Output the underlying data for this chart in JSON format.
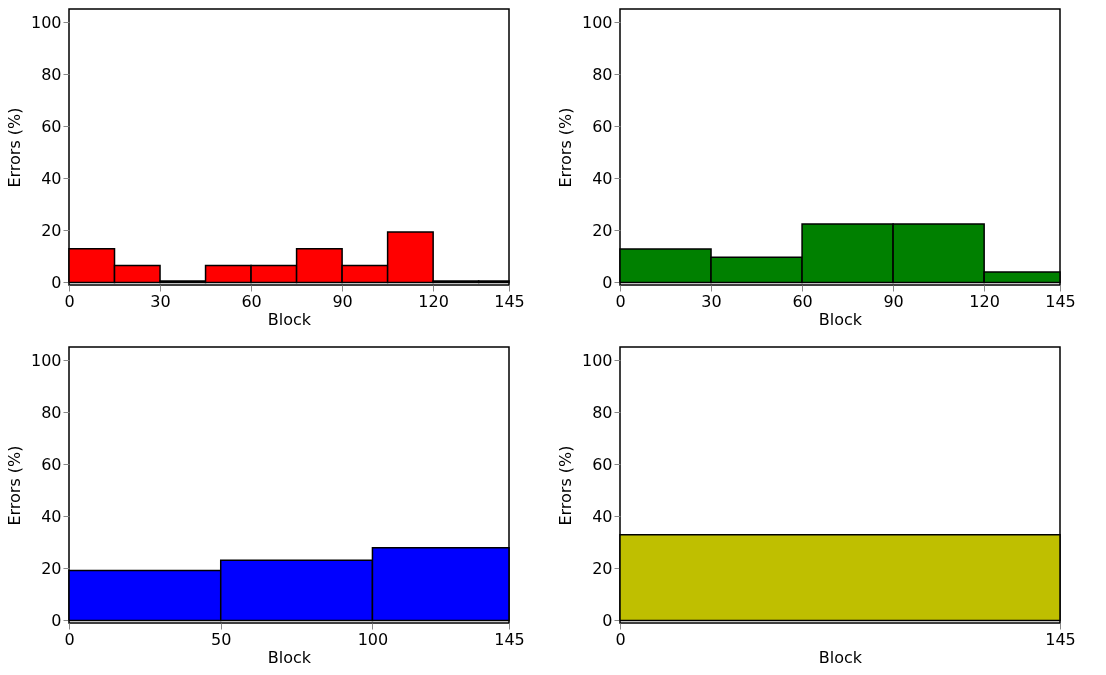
{
  "chart_data": [
    {
      "type": "histogram",
      "bins": [
        0,
        15,
        30,
        45,
        60,
        75,
        90,
        105,
        120,
        135,
        145
      ],
      "values": [
        12.9,
        6.5,
        0.5,
        6.5,
        6.5,
        12.9,
        6.5,
        19.4,
        0.5,
        0.5
      ],
      "color": "#ff0000",
      "xlabel": "Block",
      "ylabel": "Errors (%)",
      "xlim": [
        0,
        145
      ],
      "xticks": [
        0,
        30,
        60,
        90,
        120,
        145
      ],
      "ylim": [
        -1,
        105
      ],
      "yticks": [
        0,
        20,
        40,
        60,
        80,
        100
      ],
      "grid": false
    },
    {
      "type": "histogram",
      "bins": [
        0,
        30,
        60,
        90,
        120,
        145
      ],
      "values": [
        12.8,
        9.7,
        22.4,
        22.4,
        4.0
      ],
      "color": "#008000",
      "xlabel": "Block",
      "ylabel": "Errors (%)",
      "xlim": [
        0,
        145
      ],
      "xticks": [
        0,
        30,
        60,
        90,
        120,
        145
      ],
      "ylim": [
        -1,
        105
      ],
      "yticks": [
        0,
        20,
        40,
        60,
        80,
        100
      ],
      "grid": false
    },
    {
      "type": "histogram",
      "bins": [
        0,
        50,
        100,
        145
      ],
      "values": [
        19.2,
        23.1,
        27.9
      ],
      "color": "#0000ff",
      "xlabel": "Block",
      "ylabel": "Errors (%)",
      "xlim": [
        0,
        145
      ],
      "xticks": [
        0,
        50,
        100,
        145
      ],
      "ylim": [
        -1,
        105
      ],
      "yticks": [
        0,
        20,
        40,
        60,
        80,
        100
      ],
      "grid": false
    },
    {
      "type": "histogram",
      "bins": [
        0,
        145
      ],
      "values": [
        32.9
      ],
      "color": "#bfbf00",
      "xlabel": "Block",
      "ylabel": "Errors (%)",
      "xlim": [
        0,
        145
      ],
      "xticks": [
        0,
        145
      ],
      "ylim": [
        -1,
        105
      ],
      "yticks": [
        0,
        20,
        40,
        60,
        80,
        100
      ],
      "grid": false
    }
  ]
}
